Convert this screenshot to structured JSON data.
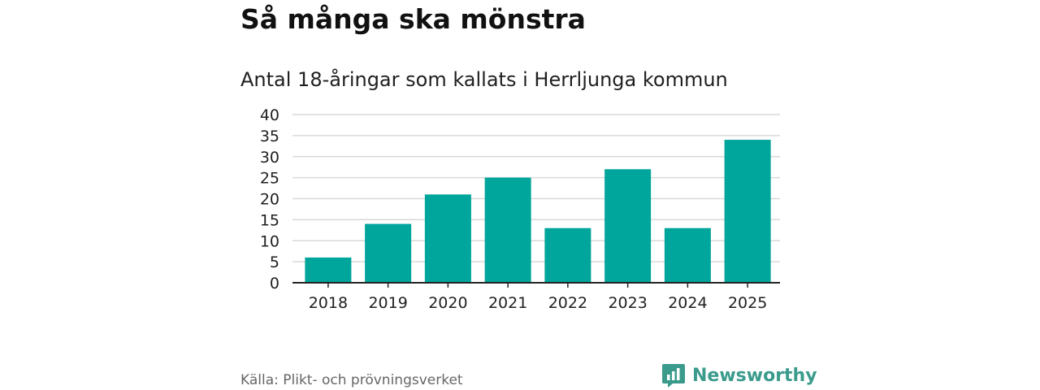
{
  "header": {
    "title": "Så många ska mönstra",
    "subtitle": "Antal 18-åringar som kallats i Herrljunga kommun"
  },
  "footer": {
    "source": "Källa: Plikt- och prövningsverket",
    "brand": "Newsworthy"
  },
  "colors": {
    "bar": "#00a59b",
    "grid": "#d9d9d9",
    "axis": "#222222",
    "brand": "#3a9b8c"
  },
  "chart_data": {
    "type": "bar",
    "title": "Så många ska mönstra",
    "subtitle": "Antal 18-åringar som kallats i Herrljunga kommun",
    "xlabel": "",
    "ylabel": "",
    "categories": [
      "2018",
      "2019",
      "2020",
      "2021",
      "2022",
      "2023",
      "2024",
      "2025"
    ],
    "values": [
      6,
      14,
      21,
      25,
      13,
      27,
      13,
      34
    ],
    "ylim": [
      0,
      40
    ],
    "yticks": [
      0,
      5,
      10,
      15,
      20,
      25,
      30,
      35,
      40
    ],
    "grid": true,
    "legend": "none"
  }
}
